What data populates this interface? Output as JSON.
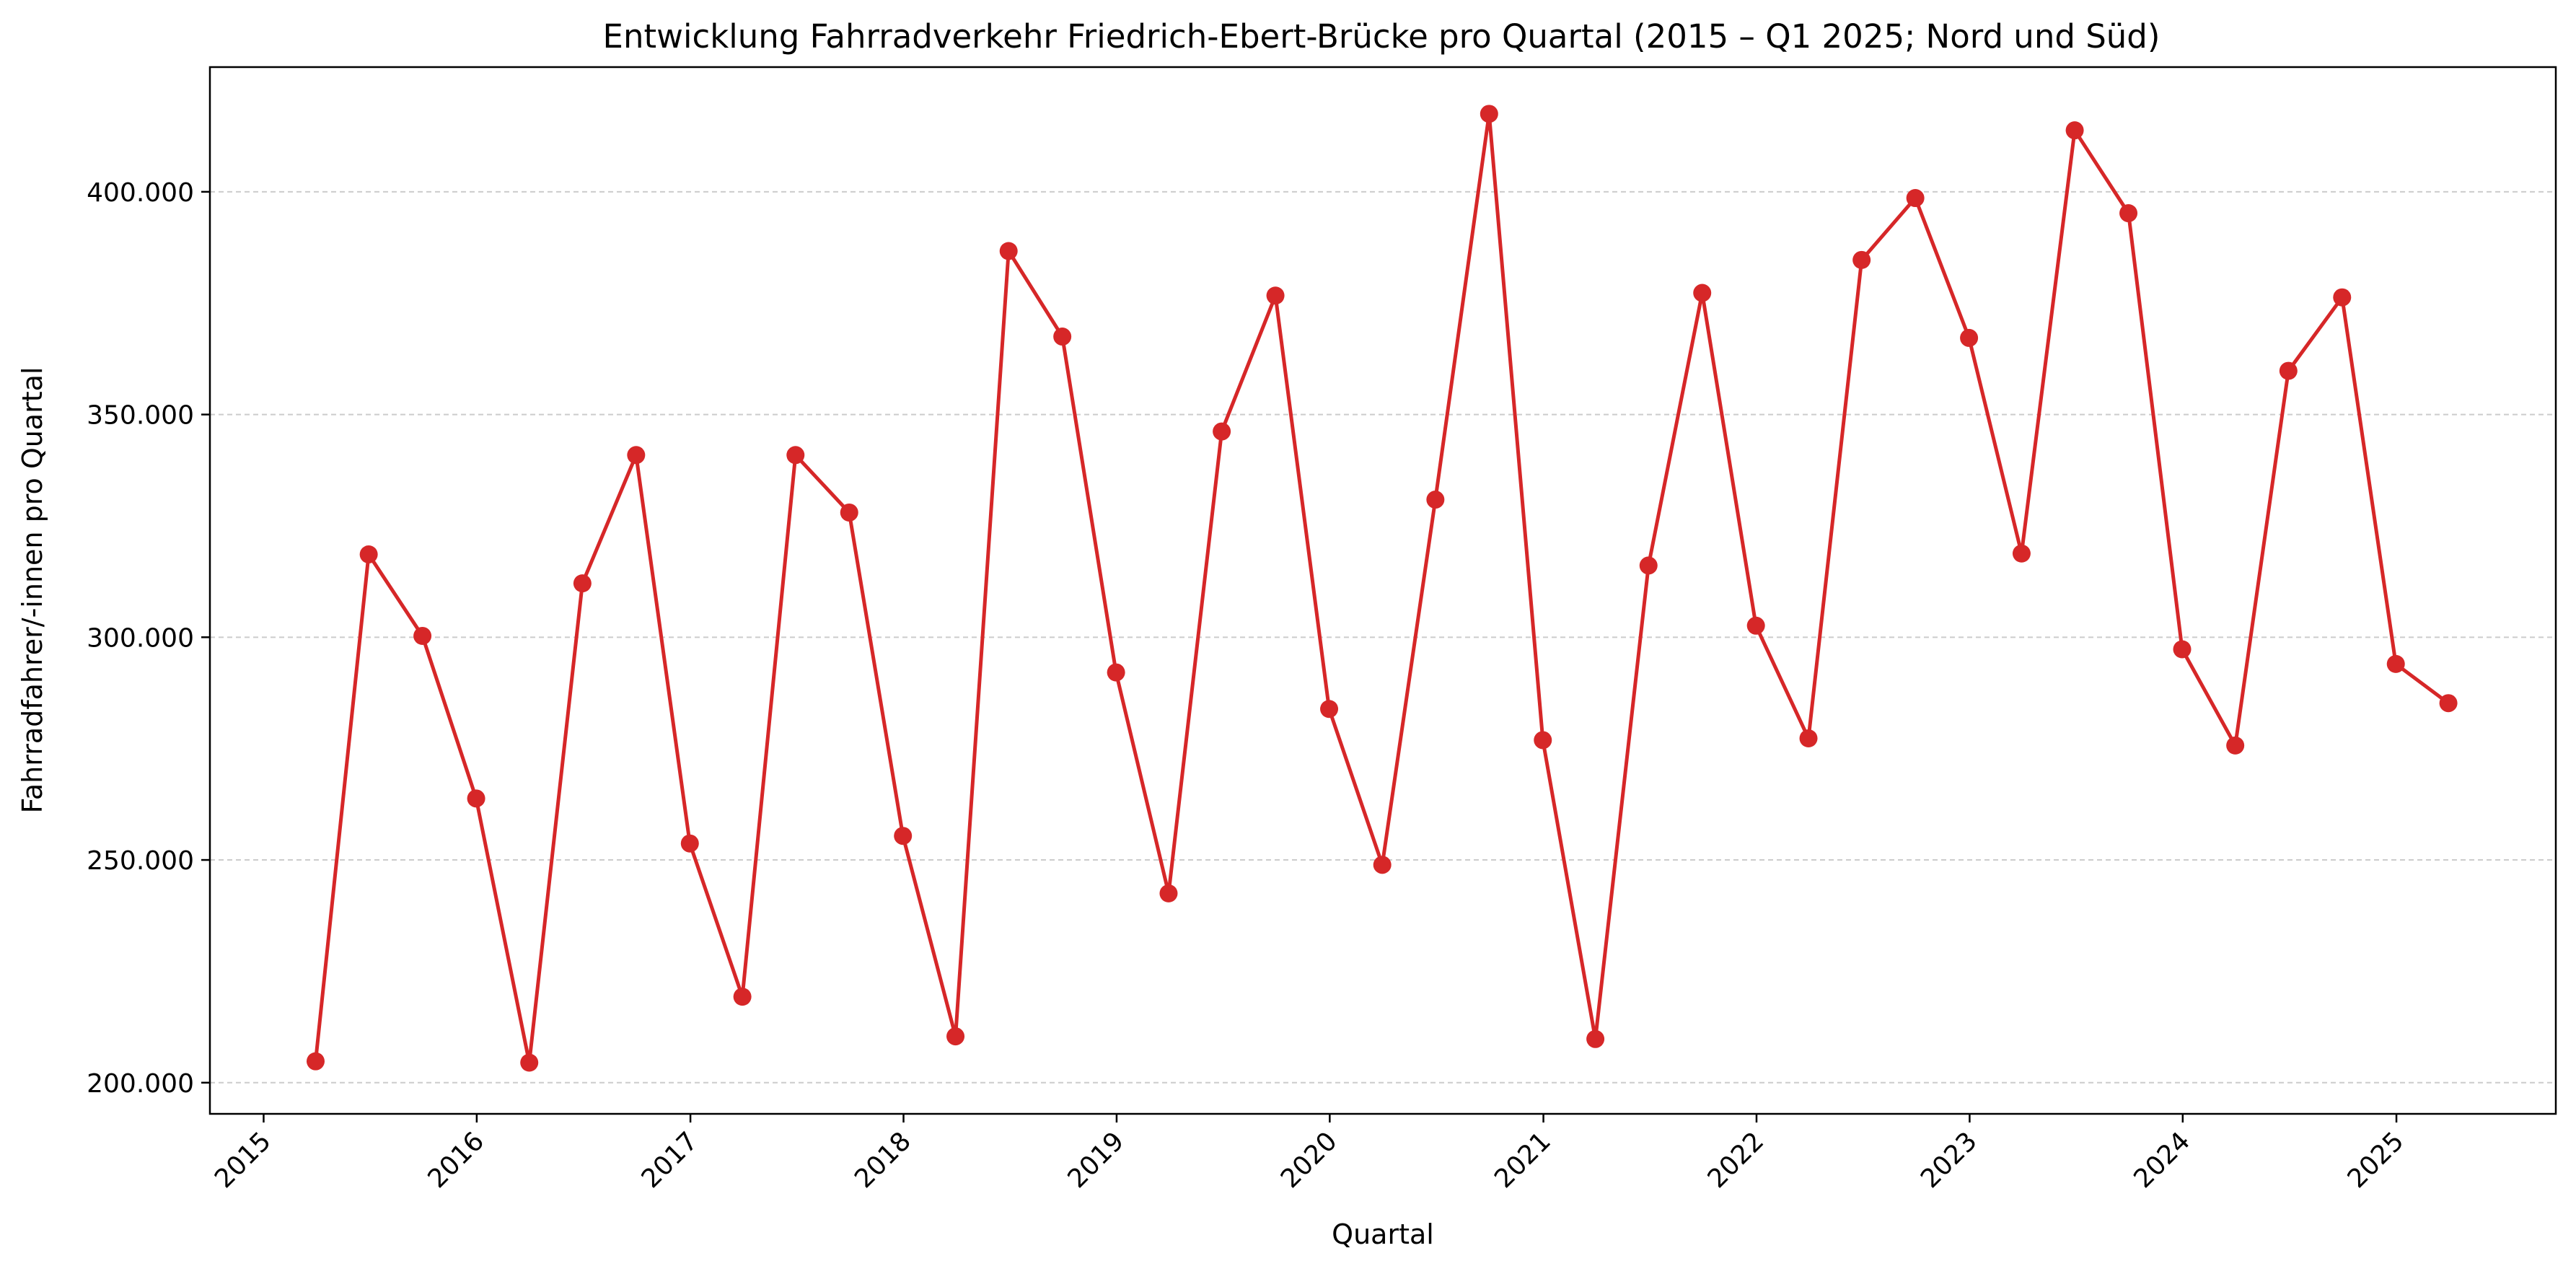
{
  "chart_data": {
    "type": "line",
    "title": "Entwicklung Fahrradverkehr Friedrich-Ebert-Brücke pro Quartal (2015 – Q1 2025; Nord und Süd)",
    "xlabel": "Quartal",
    "ylabel": "Fahrradfahrer/-innen pro Quartal",
    "ylim": [
      193000,
      428000
    ],
    "xlim": [
      "2014-10-01",
      "2025-10-01"
    ],
    "yticks": [
      200000,
      250000,
      300000,
      350000,
      400000
    ],
    "ytick_labels": [
      "200.000",
      "250.000",
      "300.000",
      "350.000",
      "400.000"
    ],
    "xticks": [
      "2015-01-01",
      "2016-01-01",
      "2017-01-01",
      "2018-01-01",
      "2019-01-01",
      "2020-01-01",
      "2021-01-01",
      "2022-01-01",
      "2023-01-01",
      "2024-01-01",
      "2025-01-01"
    ],
    "xtick_labels": [
      "2015",
      "2016",
      "2017",
      "2018",
      "2019",
      "2020",
      "2021",
      "2022",
      "2023",
      "2024",
      "2025"
    ],
    "grid": "y-only, dashed",
    "color": "#d62728",
    "x": [
      "2015-03-31",
      "2015-06-30",
      "2015-09-30",
      "2015-12-31",
      "2016-03-31",
      "2016-06-30",
      "2016-09-30",
      "2016-12-31",
      "2017-03-31",
      "2017-06-30",
      "2017-09-30",
      "2017-12-31",
      "2018-03-31",
      "2018-06-30",
      "2018-09-30",
      "2018-12-31",
      "2019-03-31",
      "2019-06-30",
      "2019-09-30",
      "2019-12-31",
      "2020-03-31",
      "2020-06-30",
      "2020-09-30",
      "2020-12-31",
      "2021-03-31",
      "2021-06-30",
      "2021-09-30",
      "2021-12-31",
      "2022-03-31",
      "2022-06-30",
      "2022-09-30",
      "2022-12-31",
      "2023-03-31",
      "2023-06-30",
      "2023-09-30",
      "2023-12-31",
      "2024-03-31",
      "2024-06-30",
      "2024-09-30",
      "2024-12-31",
      "2025-03-31"
    ],
    "values": [
      204800,
      318600,
      300300,
      263800,
      204500,
      312100,
      340900,
      253700,
      219300,
      340900,
      328000,
      255400,
      210400,
      386700,
      367500,
      292100,
      242500,
      346200,
      376700,
      283900,
      248900,
      330900,
      417500,
      276900,
      209800,
      316100,
      377300,
      302600,
      277300,
      384700,
      398600,
      367200,
      318800,
      413800,
      395200,
      297300,
      275700,
      359800,
      376300,
      294000,
      285200
    ]
  }
}
